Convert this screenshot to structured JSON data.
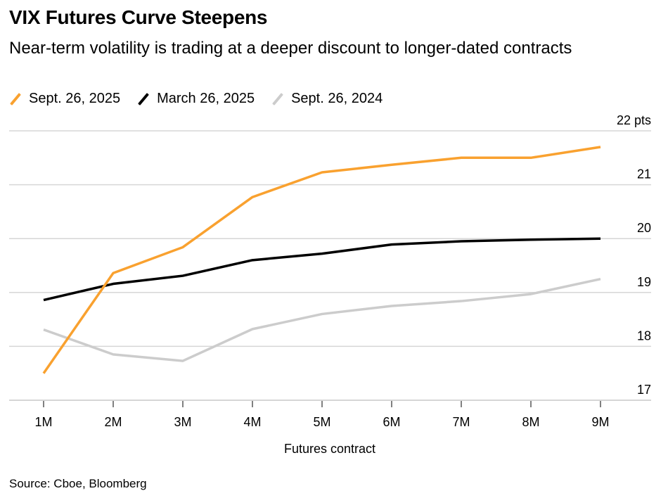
{
  "header": {
    "title": "VIX Futures Curve Steepens",
    "subtitle": "Near-term volatility is trading at a deeper discount to longer-dated contracts"
  },
  "legend": [
    {
      "label": "Sept. 26, 2025",
      "color": "#f9a12f"
    },
    {
      "label": "March 26, 2025",
      "color": "#000000"
    },
    {
      "label": "Sept. 26, 2024",
      "color": "#cccccc"
    }
  ],
  "footer": {
    "source": "Source: Cboe, Bloomberg"
  },
  "chart_data": {
    "type": "line",
    "title": "VIX Futures Curve Steepens",
    "subtitle": "Near-term volatility is trading at a deeper discount to longer-dated contracts",
    "xlabel": "Futures contract",
    "ylabel": "pts",
    "categories": [
      "1M",
      "2M",
      "3M",
      "4M",
      "5M",
      "6M",
      "7M",
      "8M",
      "9M"
    ],
    "y_ticks": [
      17,
      18,
      19,
      20,
      21,
      22
    ],
    "y_tick_labels": [
      "17",
      "18",
      "19",
      "20",
      "21",
      "22 pts"
    ],
    "ylim": [
      17,
      22
    ],
    "y_axis_position": "right",
    "grid": true,
    "legend_position": "top-left",
    "series": [
      {
        "name": "Sept. 26, 2025",
        "color": "#f9a12f",
        "values": [
          17.5,
          19.36,
          19.84,
          20.77,
          21.23,
          21.37,
          21.5,
          21.5,
          21.7
        ]
      },
      {
        "name": "March 26, 2025",
        "color": "#000000",
        "values": [
          18.86,
          19.16,
          19.31,
          19.6,
          19.72,
          19.89,
          19.95,
          19.98,
          20.0
        ]
      },
      {
        "name": "Sept. 26, 2024",
        "color": "#cccccc",
        "values": [
          18.31,
          17.85,
          17.73,
          18.32,
          18.6,
          18.75,
          18.84,
          18.97,
          19.25
        ]
      }
    ]
  }
}
